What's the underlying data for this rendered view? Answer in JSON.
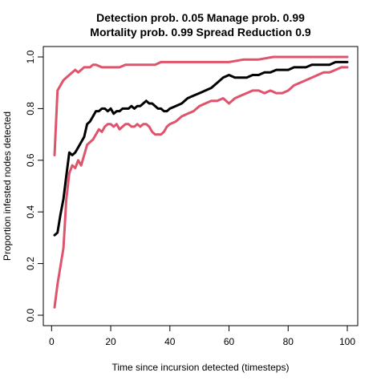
{
  "chart_data": {
    "type": "line",
    "title_lines": [
      "Detection prob. 0.05 Manage prob. 0.99",
      "Mortality prob. 0.99 Spread Reduction 0.9"
    ],
    "xlabel": "Time since incursion detected (timesteps)",
    "ylabel": "Proportion infested nodes detected",
    "xlim": [
      1,
      100
    ],
    "ylim": [
      0,
      1
    ],
    "x_ticks": [
      0,
      20,
      40,
      60,
      80,
      100
    ],
    "y_ticks": [
      "0.0",
      "0.2",
      "0.4",
      "0.6",
      "0.8",
      "1.0"
    ],
    "grid": false,
    "series": [
      {
        "color": "#000000",
        "points": [
          [
            1,
            0.31
          ],
          [
            2,
            0.32
          ],
          [
            3,
            0.39
          ],
          [
            4,
            0.45
          ],
          [
            5,
            0.54
          ],
          [
            6,
            0.63
          ],
          [
            7,
            0.62
          ],
          [
            8,
            0.63
          ],
          [
            9,
            0.65
          ],
          [
            10,
            0.67
          ],
          [
            11,
            0.69
          ],
          [
            12,
            0.74
          ],
          [
            13,
            0.75
          ],
          [
            14,
            0.77
          ],
          [
            15,
            0.79
          ],
          [
            16,
            0.79
          ],
          [
            17,
            0.8
          ],
          [
            18,
            0.8
          ],
          [
            19,
            0.79
          ],
          [
            20,
            0.8
          ],
          [
            21,
            0.78
          ],
          [
            22,
            0.79
          ],
          [
            23,
            0.79
          ],
          [
            24,
            0.8
          ],
          [
            25,
            0.8
          ],
          [
            26,
            0.8
          ],
          [
            27,
            0.81
          ],
          [
            28,
            0.8
          ],
          [
            29,
            0.81
          ],
          [
            30,
            0.81
          ],
          [
            31,
            0.82
          ],
          [
            32,
            0.83
          ],
          [
            33,
            0.82
          ],
          [
            34,
            0.82
          ],
          [
            35,
            0.81
          ],
          [
            36,
            0.8
          ],
          [
            37,
            0.8
          ],
          [
            38,
            0.79
          ],
          [
            39,
            0.79
          ],
          [
            40,
            0.8
          ],
          [
            42,
            0.81
          ],
          [
            44,
            0.82
          ],
          [
            46,
            0.84
          ],
          [
            48,
            0.85
          ],
          [
            50,
            0.86
          ],
          [
            52,
            0.87
          ],
          [
            54,
            0.88
          ],
          [
            56,
            0.9
          ],
          [
            58,
            0.92
          ],
          [
            60,
            0.93
          ],
          [
            62,
            0.92
          ],
          [
            64,
            0.92
          ],
          [
            66,
            0.92
          ],
          [
            68,
            0.93
          ],
          [
            70,
            0.93
          ],
          [
            72,
            0.94
          ],
          [
            74,
            0.94
          ],
          [
            76,
            0.95
          ],
          [
            78,
            0.95
          ],
          [
            80,
            0.95
          ],
          [
            82,
            0.96
          ],
          [
            84,
            0.96
          ],
          [
            86,
            0.96
          ],
          [
            88,
            0.97
          ],
          [
            90,
            0.97
          ],
          [
            92,
            0.97
          ],
          [
            94,
            0.97
          ],
          [
            96,
            0.98
          ],
          [
            98,
            0.98
          ],
          [
            100,
            0.98
          ]
        ]
      },
      {
        "color": "#DF536B",
        "points": [
          [
            1,
            0.62
          ],
          [
            2,
            0.87
          ],
          [
            3,
            0.89
          ],
          [
            4,
            0.91
          ],
          [
            5,
            0.92
          ],
          [
            6,
            0.93
          ],
          [
            7,
            0.94
          ],
          [
            8,
            0.95
          ],
          [
            9,
            0.94
          ],
          [
            10,
            0.95
          ],
          [
            11,
            0.96
          ],
          [
            12,
            0.96
          ],
          [
            13,
            0.96
          ],
          [
            14,
            0.97
          ],
          [
            15,
            0.97
          ],
          [
            17,
            0.96
          ],
          [
            19,
            0.96
          ],
          [
            21,
            0.96
          ],
          [
            23,
            0.96
          ],
          [
            25,
            0.97
          ],
          [
            27,
            0.97
          ],
          [
            29,
            0.97
          ],
          [
            31,
            0.97
          ],
          [
            33,
            0.97
          ],
          [
            35,
            0.97
          ],
          [
            37,
            0.98
          ],
          [
            40,
            0.98
          ],
          [
            45,
            0.98
          ],
          [
            50,
            0.98
          ],
          [
            55,
            0.98
          ],
          [
            60,
            0.98
          ],
          [
            65,
            0.99
          ],
          [
            70,
            0.99
          ],
          [
            75,
            1.0
          ],
          [
            80,
            1.0
          ],
          [
            85,
            1.0
          ],
          [
            90,
            1.0
          ],
          [
            95,
            1.0
          ],
          [
            100,
            1.0
          ]
        ]
      },
      {
        "color": "#DF536B",
        "points": [
          [
            1,
            0.03
          ],
          [
            2,
            0.12
          ],
          [
            3,
            0.19
          ],
          [
            4,
            0.26
          ],
          [
            5,
            0.45
          ],
          [
            6,
            0.55
          ],
          [
            7,
            0.58
          ],
          [
            8,
            0.57
          ],
          [
            9,
            0.6
          ],
          [
            10,
            0.58
          ],
          [
            11,
            0.62
          ],
          [
            12,
            0.66
          ],
          [
            13,
            0.67
          ],
          [
            14,
            0.68
          ],
          [
            15,
            0.7
          ],
          [
            16,
            0.72
          ],
          [
            17,
            0.71
          ],
          [
            18,
            0.73
          ],
          [
            19,
            0.74
          ],
          [
            20,
            0.74
          ],
          [
            21,
            0.73
          ],
          [
            22,
            0.74
          ],
          [
            23,
            0.72
          ],
          [
            24,
            0.73
          ],
          [
            25,
            0.74
          ],
          [
            26,
            0.74
          ],
          [
            27,
            0.73
          ],
          [
            28,
            0.73
          ],
          [
            29,
            0.74
          ],
          [
            30,
            0.73
          ],
          [
            31,
            0.74
          ],
          [
            32,
            0.74
          ],
          [
            33,
            0.73
          ],
          [
            34,
            0.71
          ],
          [
            35,
            0.7
          ],
          [
            36,
            0.7
          ],
          [
            37,
            0.7
          ],
          [
            38,
            0.71
          ],
          [
            39,
            0.73
          ],
          [
            40,
            0.74
          ],
          [
            42,
            0.75
          ],
          [
            44,
            0.77
          ],
          [
            46,
            0.78
          ],
          [
            48,
            0.79
          ],
          [
            50,
            0.81
          ],
          [
            52,
            0.82
          ],
          [
            54,
            0.83
          ],
          [
            56,
            0.83
          ],
          [
            58,
            0.84
          ],
          [
            60,
            0.82
          ],
          [
            62,
            0.84
          ],
          [
            64,
            0.85
          ],
          [
            66,
            0.86
          ],
          [
            68,
            0.87
          ],
          [
            70,
            0.87
          ],
          [
            72,
            0.86
          ],
          [
            74,
            0.87
          ],
          [
            76,
            0.86
          ],
          [
            78,
            0.86
          ],
          [
            80,
            0.87
          ],
          [
            82,
            0.89
          ],
          [
            84,
            0.9
          ],
          [
            86,
            0.91
          ],
          [
            88,
            0.92
          ],
          [
            90,
            0.93
          ],
          [
            92,
            0.94
          ],
          [
            94,
            0.94
          ],
          [
            96,
            0.95
          ],
          [
            98,
            0.96
          ],
          [
            100,
            0.96
          ]
        ]
      }
    ]
  }
}
